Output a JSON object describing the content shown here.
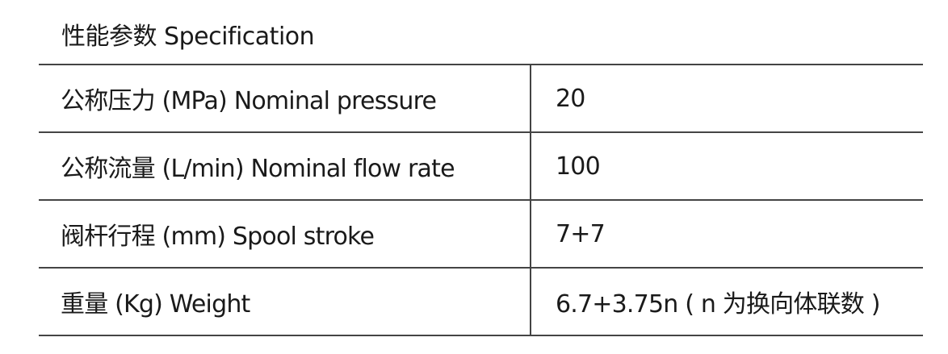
{
  "title": "性能参数   Specification",
  "rows": [
    {
      "label": "公称压力 (MPa) Nominal pressure",
      "value": "20"
    },
    {
      "label": "公称流量 (L/min) Nominal flow rate",
      "value": "100"
    },
    {
      "label": "阀杆行程 (mm) Spool stroke",
      "value": "7+7"
    },
    {
      "label": "重量 (Kg) Weight",
      "value": "6.7+3.75n ( n 为换向体联数 )"
    }
  ]
}
